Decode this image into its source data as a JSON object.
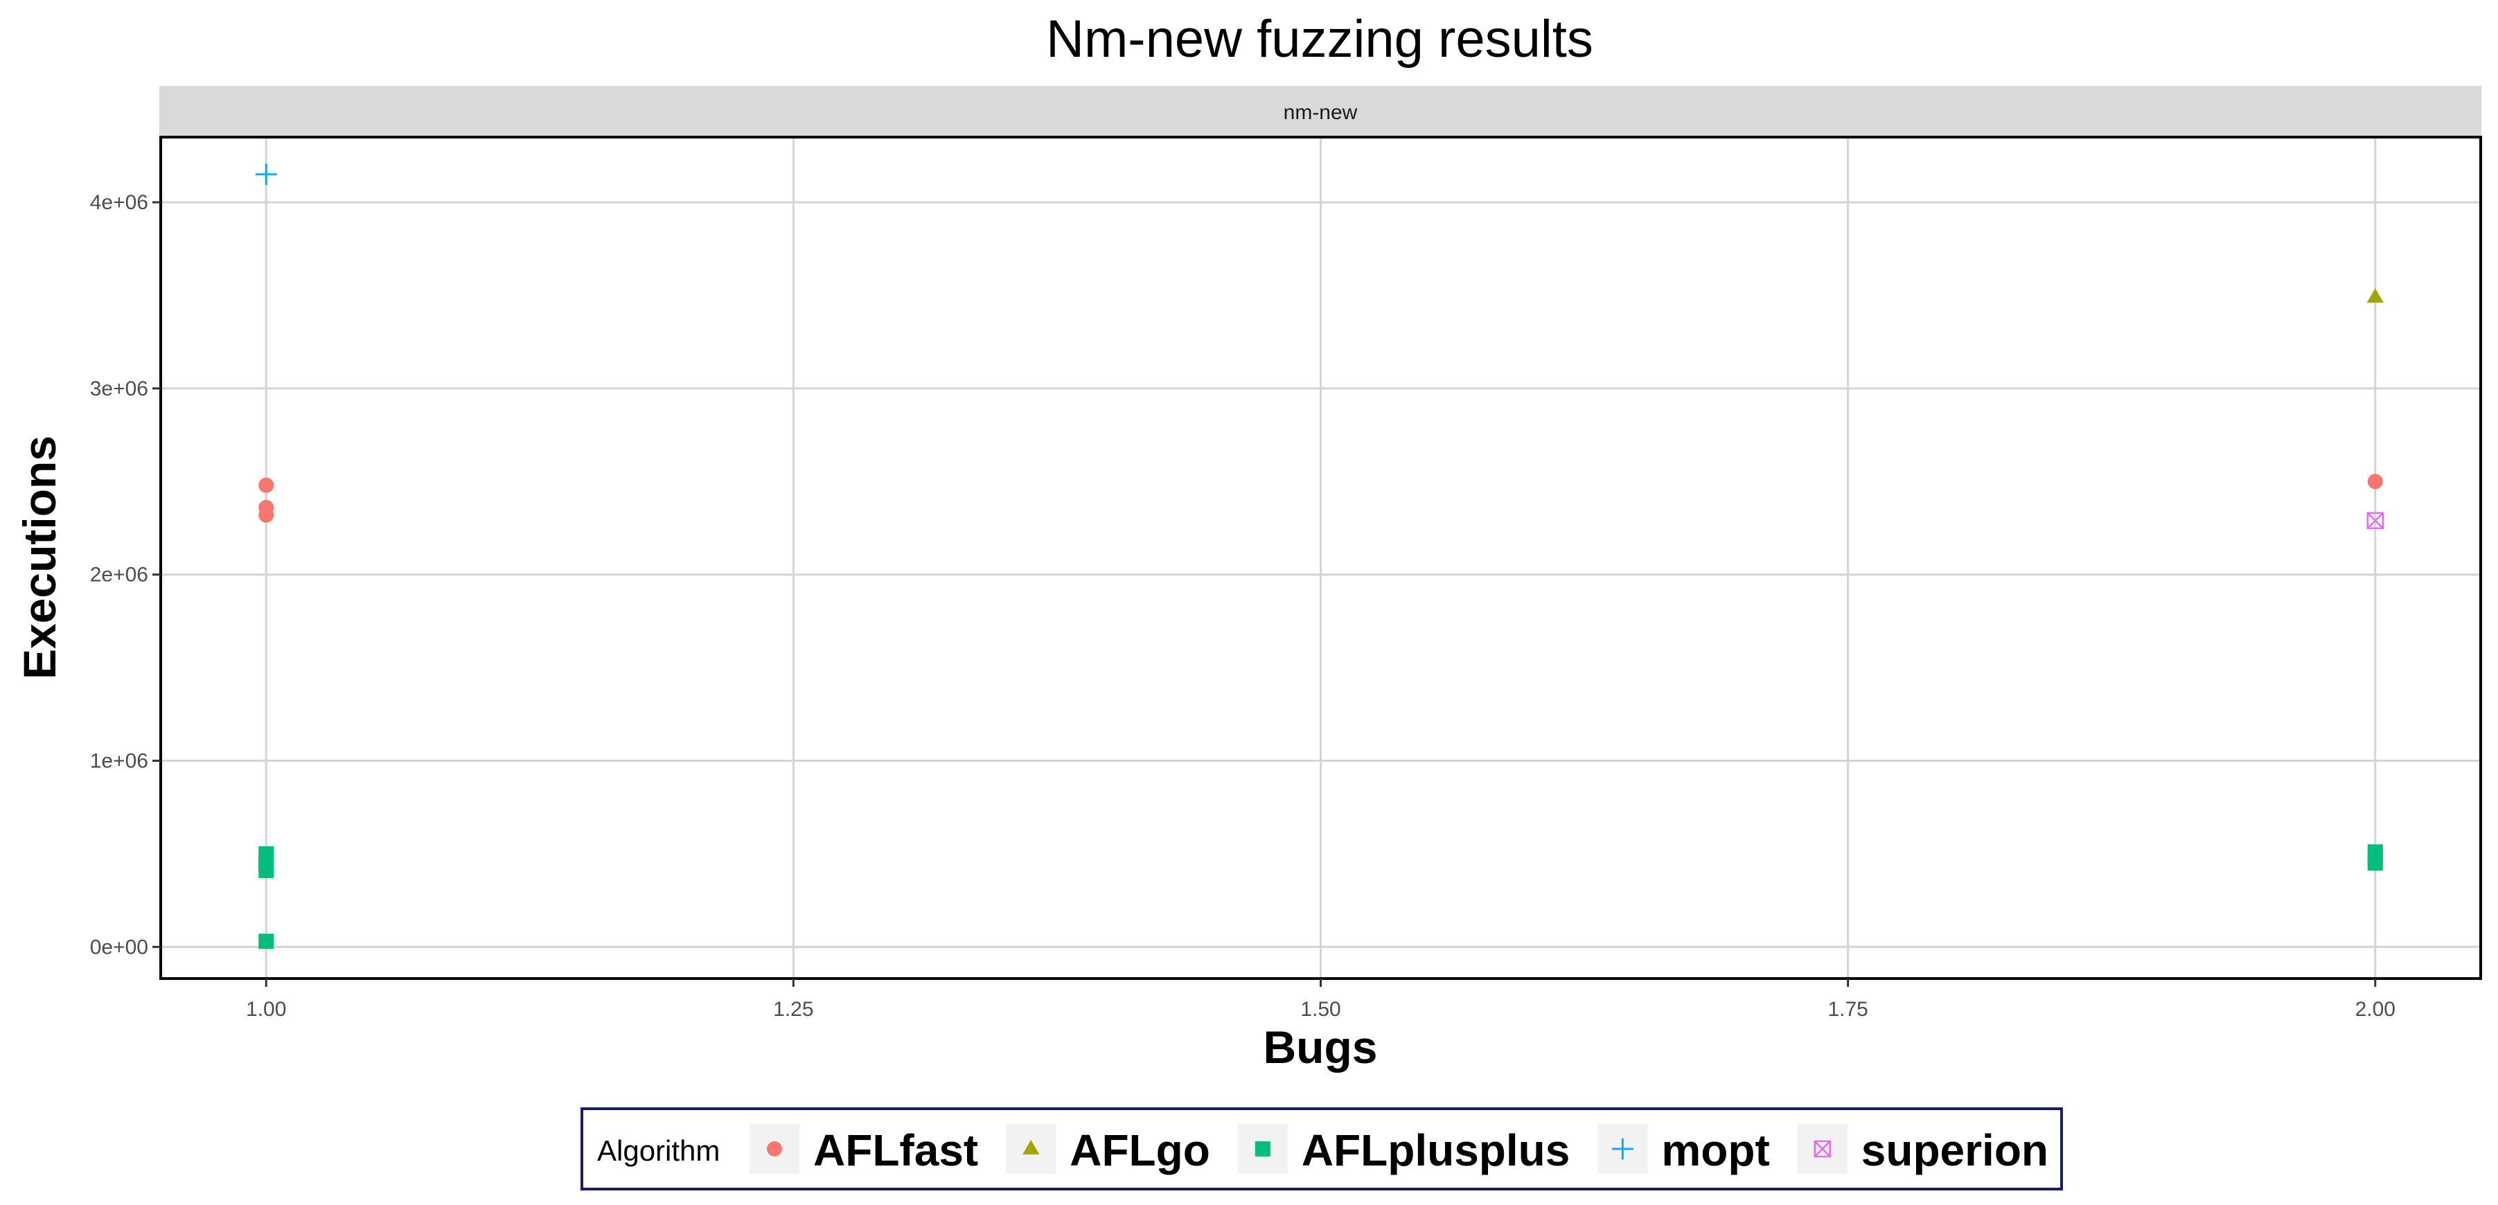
{
  "chart_data": {
    "type": "scatter",
    "title": "Nm-new fuzzing results",
    "facet_label": "nm-new",
    "xlabel": "Bugs",
    "ylabel": "Executions",
    "xlim": [
      0.95,
      2.05
    ],
    "ylim": [
      -170000,
      4350000
    ],
    "x_ticks": [
      1.0,
      1.25,
      1.5,
      1.75,
      2.0
    ],
    "x_tick_labels": [
      "1.00",
      "1.25",
      "1.50",
      "1.75",
      "2.00"
    ],
    "y_ticks": [
      0,
      1000000,
      2000000,
      3000000,
      4000000
    ],
    "y_tick_labels": [
      "0e+00",
      "1e+06",
      "2e+06",
      "3e+06",
      "4e+06"
    ],
    "grid": true,
    "legend_position": "bottom",
    "legend_title": "Algorithm",
    "series": [
      {
        "name": "AFLfast",
        "color": "#F8766D",
        "shape": "circle",
        "points": [
          [
            1,
            2480000
          ],
          [
            1,
            2360000
          ],
          [
            1,
            2320000
          ],
          [
            2,
            2500000
          ]
        ]
      },
      {
        "name": "AFLgo",
        "color": "#A3A500",
        "shape": "triangle",
        "points": [
          [
            2,
            3490000
          ]
        ]
      },
      {
        "name": "AFLplusplus",
        "color": "#00BF7D",
        "shape": "square",
        "points": [
          [
            1,
            500000
          ],
          [
            1,
            470000
          ],
          [
            1,
            440000
          ],
          [
            1,
            410000
          ],
          [
            1,
            30000
          ],
          [
            2,
            510000
          ],
          [
            2,
            480000
          ],
          [
            2,
            450000
          ]
        ]
      },
      {
        "name": "mopt",
        "color": "#00B0F6",
        "shape": "plus",
        "points": [
          [
            1,
            4150000
          ]
        ]
      },
      {
        "name": "superion",
        "color": "#E76BF3",
        "shape": "square-cross",
        "points": [
          [
            2,
            2290000
          ]
        ]
      }
    ]
  }
}
